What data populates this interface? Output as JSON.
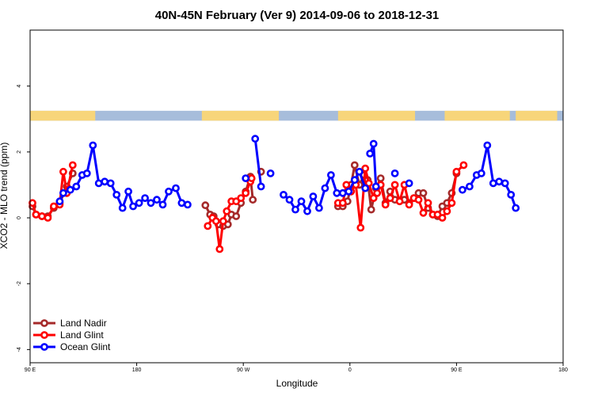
{
  "chart_data": {
    "type": "line",
    "title": "40N-45N February (Ver 9)   2014-09-06 to 2018-12-31",
    "xlabel": "Longitude",
    "ylabel": "XCO2 - MLO trend (ppm)",
    "xlim": [
      90,
      540
    ],
    "ylim": [
      -4.4,
      5.7
    ],
    "x_ticks": [
      {
        "value": 90,
        "label": "90 E"
      },
      {
        "value": 180,
        "label": "180"
      },
      {
        "value": 270,
        "label": "90 W"
      },
      {
        "value": 360,
        "label": "0"
      },
      {
        "value": 450,
        "label": "90 E"
      },
      {
        "value": 540,
        "label": "180"
      }
    ],
    "y_ticks": [
      {
        "value": -4,
        "label": "-4"
      },
      {
        "value": -2,
        "label": "-2"
      },
      {
        "value": 0,
        "label": "0"
      },
      {
        "value": 2,
        "label": "2"
      },
      {
        "value": 4,
        "label": "4"
      }
    ],
    "land_ocean_strip": {
      "y_range": [
        2.95,
        3.25
      ],
      "ocean_color": "#a7bddb",
      "land_color": "#f7d57a",
      "land_segments": [
        [
          90,
          145
        ],
        [
          235,
          300
        ],
        [
          350,
          415
        ],
        [
          440,
          495
        ],
        [
          500,
          535
        ]
      ]
    },
    "legend_position": "bottom-left",
    "series": [
      {
        "name": "Land Nadir",
        "color": "#a52a2a",
        "segments": [
          [
            [
              92,
              0.35
            ],
            [
              95,
              0.1
            ],
            [
              100,
              0.05
            ],
            [
              105,
              0.05
            ],
            [
              110,
              0.3
            ],
            [
              115,
              0.45
            ],
            [
              121,
              0.95
            ],
            [
              126,
              1.35
            ]
          ],
          [
            [
              238,
              0.38
            ],
            [
              242,
              0.1
            ],
            [
              245,
              0.05
            ],
            [
              249,
              -0.2
            ],
            [
              253,
              -0.25
            ],
            [
              257,
              -0.2
            ],
            [
              260,
              0.1
            ],
            [
              264,
              0.05
            ],
            [
              268,
              0.45
            ],
            [
              272,
              0.8
            ],
            [
              276,
              1.25
            ],
            [
              278,
              0.55
            ]
          ],
          [
            [
              285,
              1.4
            ]
          ],
          [
            [
              350,
              0.35
            ],
            [
              354,
              0.35
            ],
            [
              358,
              0.5
            ],
            [
              361,
              1.0
            ],
            [
              364,
              1.6
            ],
            [
              368,
              1.0
            ],
            [
              372,
              1.3
            ],
            [
              375,
              1.15
            ],
            [
              378,
              0.25
            ],
            [
              382,
              0.9
            ],
            [
              386,
              1.2
            ],
            [
              390,
              0.45
            ],
            [
              394,
              0.8
            ],
            [
              398,
              0.55
            ],
            [
              402,
              0.5
            ],
            [
              406,
              0.55
            ],
            [
              410,
              0.45
            ],
            [
              414,
              0.6
            ],
            [
              418,
              0.75
            ],
            [
              422,
              0.75
            ],
            [
              426,
              0.3
            ],
            [
              430,
              0.1
            ],
            [
              434,
              0.05
            ],
            [
              438,
              0.35
            ],
            [
              442,
              0.45
            ],
            [
              446,
              0.75
            ],
            [
              450,
              1.35
            ]
          ]
        ]
      },
      {
        "name": "Land Glint",
        "color": "#ff0000",
        "segments": [
          [
            [
              92,
              0.45
            ],
            [
              95,
              0.1
            ],
            [
              100,
              0.05
            ],
            [
              105,
              0.0
            ],
            [
              110,
              0.35
            ],
            [
              115,
              0.4
            ],
            [
              118,
              1.4
            ],
            [
              121,
              0.75
            ],
            [
              126,
              1.6
            ]
          ],
          [
            [
              240,
              -0.25
            ],
            [
              244,
              0.0
            ],
            [
              247,
              -0.1
            ],
            [
              250,
              -0.95
            ],
            [
              253,
              -0.1
            ],
            [
              256,
              0.2
            ],
            [
              260,
              0.5
            ],
            [
              264,
              0.5
            ],
            [
              268,
              0.6
            ],
            [
              272,
              0.75
            ],
            [
              276,
              1.1
            ],
            [
              277,
              1.2
            ]
          ],
          [
            [
              350,
              0.45
            ],
            [
              354,
              0.45
            ],
            [
              357,
              1.0
            ],
            [
              361,
              0.8
            ],
            [
              365,
              1.0
            ],
            [
              369,
              -0.3
            ],
            [
              373,
              1.5
            ],
            [
              376,
              1.05
            ],
            [
              380,
              0.6
            ],
            [
              383,
              0.75
            ],
            [
              386,
              1.0
            ],
            [
              390,
              0.4
            ],
            [
              394,
              0.6
            ],
            [
              398,
              1.0
            ],
            [
              402,
              0.5
            ],
            [
              406,
              1.0
            ],
            [
              410,
              0.4
            ],
            [
              414,
              0.6
            ],
            [
              418,
              0.55
            ],
            [
              422,
              0.15
            ],
            [
              426,
              0.45
            ],
            [
              430,
              0.1
            ],
            [
              434,
              0.1
            ],
            [
              438,
              0.0
            ],
            [
              442,
              0.2
            ],
            [
              446,
              0.45
            ],
            [
              450,
              1.4
            ],
            [
              456,
              1.6
            ]
          ]
        ]
      },
      {
        "name": "Ocean Glint",
        "color": "#0000ff",
        "segments": [
          [
            [
              115,
              0.5
            ],
            [
              118,
              0.75
            ],
            [
              124,
              0.85
            ],
            [
              129,
              0.95
            ],
            [
              134,
              1.3
            ],
            [
              138,
              1.35
            ],
            [
              143,
              2.2
            ],
            [
              148,
              1.05
            ],
            [
              153,
              1.1
            ],
            [
              158,
              1.05
            ],
            [
              163,
              0.7
            ],
            [
              168,
              0.3
            ],
            [
              173,
              0.8
            ],
            [
              177,
              0.35
            ],
            [
              182,
              0.45
            ],
            [
              187,
              0.6
            ],
            [
              192,
              0.45
            ],
            [
              197,
              0.55
            ],
            [
              202,
              0.4
            ],
            [
              207,
              0.8
            ],
            [
              213,
              0.9
            ],
            [
              218,
              0.45
            ],
            [
              223,
              0.4
            ]
          ],
          [
            [
              272,
              1.2
            ]
          ],
          [
            [
              280,
              2.4
            ],
            [
              285,
              0.95
            ]
          ],
          [
            [
              293,
              1.35
            ]
          ],
          [
            [
              304,
              0.7
            ],
            [
              309,
              0.55
            ],
            [
              314,
              0.25
            ],
            [
              319,
              0.5
            ],
            [
              324,
              0.2
            ],
            [
              329,
              0.65
            ],
            [
              334,
              0.3
            ],
            [
              339,
              0.9
            ],
            [
              344,
              1.3
            ],
            [
              349,
              0.75
            ],
            [
              354,
              0.75
            ],
            [
              359,
              0.8
            ],
            [
              364,
              1.15
            ],
            [
              368,
              1.4
            ],
            [
              373,
              0.9
            ]
          ],
          [
            [
              377,
              1.95
            ],
            [
              380,
              2.25
            ],
            [
              382,
              0.95
            ]
          ],
          [
            [
              398,
              1.35
            ]
          ],
          [
            [
              410,
              1.05
            ]
          ],
          [
            [
              455,
              0.85
            ],
            [
              461,
              0.95
            ],
            [
              467,
              1.3
            ],
            [
              471,
              1.35
            ],
            [
              476,
              2.2
            ],
            [
              481,
              1.05
            ],
            [
              486,
              1.1
            ],
            [
              491,
              1.05
            ],
            [
              496,
              0.7
            ],
            [
              500,
              0.3
            ]
          ]
        ]
      }
    ]
  }
}
